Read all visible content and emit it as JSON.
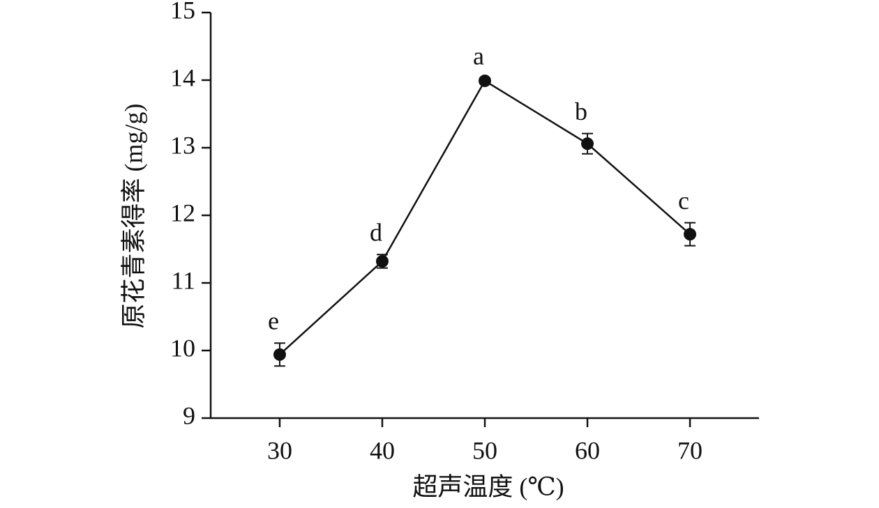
{
  "chart_data": {
    "type": "line",
    "x_label": "超声温度 (℃)",
    "y_label": "原花青素得率 (mg/g)",
    "x": [
      30,
      40,
      50,
      60,
      70
    ],
    "series": [
      {
        "values": [
          9.94,
          11.32,
          13.99,
          13.06,
          11.72
        ],
        "errors": [
          0.17,
          0.1,
          0.04,
          0.15,
          0.17
        ],
        "letters": [
          "e",
          "d",
          "a",
          "b",
          "c"
        ],
        "color": "#111111"
      }
    ],
    "xlim": [
      23.27,
      76.73
    ],
    "xticks": [
      30,
      40,
      50,
      60,
      70
    ],
    "ylim": [
      9,
      15
    ],
    "yticks": [
      9,
      10,
      11,
      12,
      13,
      14,
      15
    ],
    "grid": false
  }
}
